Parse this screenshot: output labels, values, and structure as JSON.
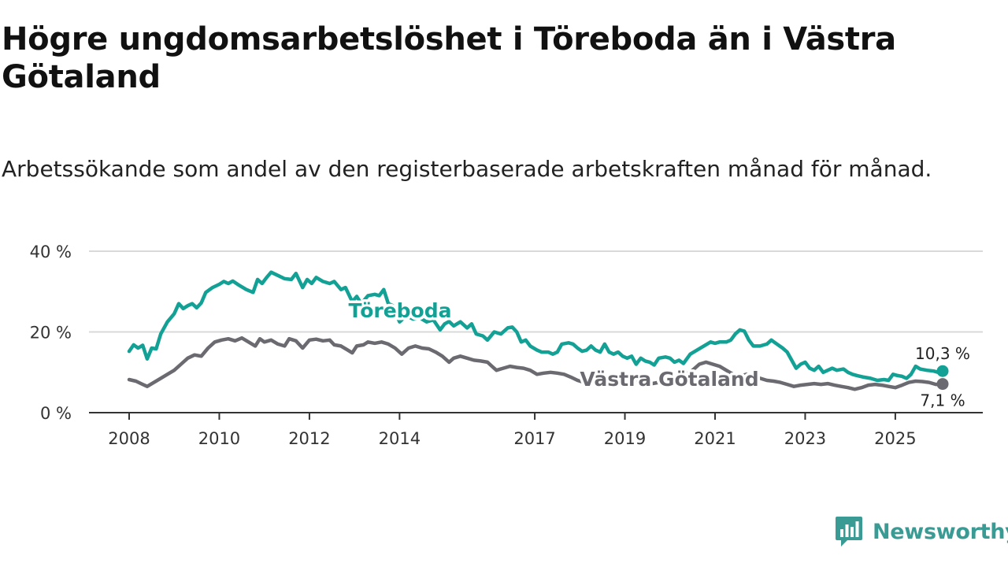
{
  "header": {
    "title": "Högre ungdomsarbetslöshet i Töreboda än i Västra Götaland",
    "subtitle": "Arbetssökande som andel av den registerbaserade arbetskraften månad för månad."
  },
  "brand": {
    "name": "Newsworthy",
    "icon": "newsworthy-logo-icon",
    "color": "#3a9b95"
  },
  "colors": {
    "toreboda": "#13a195",
    "vastra": "#6b6a70",
    "grid": "#d9d9d9",
    "axis": "#333333"
  },
  "chart_data": {
    "type": "line",
    "title": "Högre ungdomsarbetslöshet i Töreboda än i Västra Götaland",
    "subtitle": "Arbetssökande som andel av den registerbaserade arbetskraften månad för månad.",
    "xlabel": "",
    "ylabel": "",
    "ylim": [
      0,
      40
    ],
    "yticks": [
      0,
      20,
      40
    ],
    "ytick_labels": [
      "0 %",
      "20 %",
      "40 %"
    ],
    "xlim": [
      2008,
      2026.05
    ],
    "xticks": [
      2008,
      2010,
      2012,
      2014,
      2017,
      2019,
      2021,
      2023,
      2025
    ],
    "xtick_labels": [
      "2008",
      "2010",
      "2012",
      "2014",
      "2017",
      "2019",
      "2021",
      "2023",
      "2025"
    ],
    "grid": true,
    "legend": "inline labels",
    "series": [
      {
        "name": "Töreboda",
        "label": "Töreboda",
        "end_label": "10,3 %",
        "color": "#13a195",
        "points": [
          [
            2008.0,
            15.2
          ],
          [
            2008.1,
            16.8
          ],
          [
            2008.2,
            16.0
          ],
          [
            2008.3,
            16.7
          ],
          [
            2008.4,
            13.3
          ],
          [
            2008.5,
            16.0
          ],
          [
            2008.6,
            15.8
          ],
          [
            2008.7,
            19.5
          ],
          [
            2008.85,
            22.5
          ],
          [
            2009.0,
            24.5
          ],
          [
            2009.1,
            27.0
          ],
          [
            2009.2,
            25.8
          ],
          [
            2009.3,
            26.5
          ],
          [
            2009.4,
            27.0
          ],
          [
            2009.5,
            26.0
          ],
          [
            2009.6,
            27.2
          ],
          [
            2009.7,
            29.8
          ],
          [
            2009.85,
            31.0
          ],
          [
            2010.0,
            31.8
          ],
          [
            2010.1,
            32.5
          ],
          [
            2010.2,
            32.0
          ],
          [
            2010.3,
            32.6
          ],
          [
            2010.45,
            31.5
          ],
          [
            2010.6,
            30.5
          ],
          [
            2010.75,
            29.8
          ],
          [
            2010.85,
            33.0
          ],
          [
            2010.95,
            32.0
          ],
          [
            2011.05,
            33.5
          ],
          [
            2011.15,
            34.8
          ],
          [
            2011.3,
            34.0
          ],
          [
            2011.45,
            33.2
          ],
          [
            2011.6,
            33.0
          ],
          [
            2011.7,
            34.5
          ],
          [
            2011.85,
            31.0
          ],
          [
            2011.95,
            33.0
          ],
          [
            2012.05,
            32.0
          ],
          [
            2012.15,
            33.5
          ],
          [
            2012.3,
            32.5
          ],
          [
            2012.45,
            32.0
          ],
          [
            2012.55,
            32.5
          ],
          [
            2012.7,
            30.5
          ],
          [
            2012.8,
            31.0
          ],
          [
            2012.95,
            27.5
          ],
          [
            2013.05,
            28.8
          ],
          [
            2013.15,
            27.0
          ],
          [
            2013.3,
            29.0
          ],
          [
            2013.45,
            29.3
          ],
          [
            2013.55,
            29.0
          ],
          [
            2013.65,
            30.5
          ],
          [
            2013.75,
            27.0
          ],
          [
            2013.85,
            26.5
          ],
          [
            2014.0,
            22.5
          ],
          [
            2014.15,
            24.0
          ],
          [
            2014.3,
            23.2
          ],
          [
            2014.45,
            23.5
          ],
          [
            2014.6,
            22.5
          ],
          [
            2014.75,
            23.0
          ],
          [
            2014.9,
            20.5
          ],
          [
            2015.0,
            22.0
          ],
          [
            2015.1,
            22.6
          ],
          [
            2015.2,
            21.5
          ],
          [
            2015.35,
            22.5
          ],
          [
            2015.5,
            21.0
          ],
          [
            2015.6,
            22.0
          ],
          [
            2015.7,
            19.5
          ],
          [
            2015.85,
            19.0
          ],
          [
            2015.95,
            18.0
          ],
          [
            2016.1,
            20.0
          ],
          [
            2016.25,
            19.5
          ],
          [
            2016.4,
            21.0
          ],
          [
            2016.5,
            21.2
          ],
          [
            2016.6,
            20.0
          ],
          [
            2016.7,
            17.5
          ],
          [
            2016.8,
            18.0
          ],
          [
            2016.9,
            16.5
          ],
          [
            2017.05,
            15.5
          ],
          [
            2017.15,
            15.0
          ],
          [
            2017.3,
            15.0
          ],
          [
            2017.4,
            14.5
          ],
          [
            2017.5,
            15.0
          ],
          [
            2017.6,
            17.0
          ],
          [
            2017.75,
            17.3
          ],
          [
            2017.85,
            17.0
          ],
          [
            2017.95,
            16.0
          ],
          [
            2018.05,
            15.2
          ],
          [
            2018.15,
            15.5
          ],
          [
            2018.25,
            16.5
          ],
          [
            2018.35,
            15.5
          ],
          [
            2018.45,
            15.0
          ],
          [
            2018.55,
            17.0
          ],
          [
            2018.65,
            15.0
          ],
          [
            2018.75,
            14.5
          ],
          [
            2018.85,
            15.0
          ],
          [
            2018.95,
            14.0
          ],
          [
            2019.05,
            13.5
          ],
          [
            2019.15,
            14.0
          ],
          [
            2019.25,
            12.0
          ],
          [
            2019.35,
            13.5
          ],
          [
            2019.45,
            12.8
          ],
          [
            2019.55,
            12.5
          ],
          [
            2019.65,
            11.8
          ],
          [
            2019.75,
            13.5
          ],
          [
            2019.9,
            13.8
          ],
          [
            2020.0,
            13.5
          ],
          [
            2020.1,
            12.5
          ],
          [
            2020.2,
            13.0
          ],
          [
            2020.3,
            12.2
          ],
          [
            2020.45,
            14.5
          ],
          [
            2020.6,
            15.5
          ],
          [
            2020.75,
            16.5
          ],
          [
            2020.9,
            17.5
          ],
          [
            2021.0,
            17.2
          ],
          [
            2021.1,
            17.5
          ],
          [
            2021.25,
            17.5
          ],
          [
            2021.35,
            18.0
          ],
          [
            2021.45,
            19.5
          ],
          [
            2021.55,
            20.5
          ],
          [
            2021.65,
            20.2
          ],
          [
            2021.75,
            18.0
          ],
          [
            2021.85,
            16.5
          ],
          [
            2022.0,
            16.5
          ],
          [
            2022.15,
            17.0
          ],
          [
            2022.25,
            18.0
          ],
          [
            2022.35,
            17.2
          ],
          [
            2022.5,
            16.0
          ],
          [
            2022.6,
            15.0
          ],
          [
            2022.7,
            13.0
          ],
          [
            2022.8,
            11.0
          ],
          [
            2022.9,
            12.0
          ],
          [
            2023.0,
            12.5
          ],
          [
            2023.1,
            11.0
          ],
          [
            2023.2,
            10.5
          ],
          [
            2023.3,
            11.5
          ],
          [
            2023.4,
            10.0
          ],
          [
            2023.5,
            10.5
          ],
          [
            2023.6,
            11.0
          ],
          [
            2023.7,
            10.5
          ],
          [
            2023.85,
            10.8
          ],
          [
            2023.95,
            10.0
          ],
          [
            2024.05,
            9.5
          ],
          [
            2024.15,
            9.2
          ],
          [
            2024.3,
            8.8
          ],
          [
            2024.45,
            8.5
          ],
          [
            2024.6,
            8.0
          ],
          [
            2024.75,
            8.2
          ],
          [
            2024.85,
            8.0
          ],
          [
            2024.95,
            9.5
          ],
          [
            2025.05,
            9.2
          ],
          [
            2025.15,
            9.0
          ],
          [
            2025.25,
            8.5
          ],
          [
            2025.35,
            9.5
          ],
          [
            2025.45,
            11.5
          ],
          [
            2025.55,
            10.8
          ],
          [
            2025.7,
            10.5
          ],
          [
            2025.85,
            10.3
          ],
          [
            2025.95,
            10.0
          ],
          [
            2026.05,
            10.3
          ]
        ]
      },
      {
        "name": "Västra Götaland",
        "label": "Västra Götaland",
        "end_label": "7,1 %",
        "color": "#6b6a70",
        "points": [
          [
            2008.0,
            8.2
          ],
          [
            2008.15,
            7.8
          ],
          [
            2008.3,
            7.0
          ],
          [
            2008.4,
            6.5
          ],
          [
            2008.55,
            7.5
          ],
          [
            2008.7,
            8.5
          ],
          [
            2008.85,
            9.5
          ],
          [
            2009.0,
            10.5
          ],
          [
            2009.15,
            12.0
          ],
          [
            2009.3,
            13.5
          ],
          [
            2009.45,
            14.3
          ],
          [
            2009.6,
            14.0
          ],
          [
            2009.75,
            16.0
          ],
          [
            2009.9,
            17.5
          ],
          [
            2010.05,
            18.0
          ],
          [
            2010.2,
            18.3
          ],
          [
            2010.35,
            17.8
          ],
          [
            2010.5,
            18.5
          ],
          [
            2010.65,
            17.5
          ],
          [
            2010.8,
            16.5
          ],
          [
            2010.9,
            18.3
          ],
          [
            2011.0,
            17.5
          ],
          [
            2011.15,
            18.0
          ],
          [
            2011.3,
            17.0
          ],
          [
            2011.45,
            16.5
          ],
          [
            2011.55,
            18.3
          ],
          [
            2011.7,
            17.8
          ],
          [
            2011.85,
            16.0
          ],
          [
            2012.0,
            18.0
          ],
          [
            2012.15,
            18.2
          ],
          [
            2012.3,
            17.8
          ],
          [
            2012.45,
            18.0
          ],
          [
            2012.55,
            16.8
          ],
          [
            2012.7,
            16.5
          ],
          [
            2012.85,
            15.5
          ],
          [
            2012.95,
            14.8
          ],
          [
            2013.05,
            16.5
          ],
          [
            2013.2,
            16.8
          ],
          [
            2013.3,
            17.5
          ],
          [
            2013.45,
            17.2
          ],
          [
            2013.6,
            17.5
          ],
          [
            2013.75,
            17.0
          ],
          [
            2013.9,
            16.0
          ],
          [
            2014.05,
            14.5
          ],
          [
            2014.2,
            16.0
          ],
          [
            2014.35,
            16.5
          ],
          [
            2014.5,
            16.0
          ],
          [
            2014.65,
            15.8
          ],
          [
            2014.8,
            15.0
          ],
          [
            2014.95,
            14.0
          ],
          [
            2015.1,
            12.5
          ],
          [
            2015.2,
            13.5
          ],
          [
            2015.35,
            14.0
          ],
          [
            2015.5,
            13.5
          ],
          [
            2015.65,
            13.0
          ],
          [
            2015.8,
            12.8
          ],
          [
            2015.95,
            12.5
          ],
          [
            2016.05,
            11.5
          ],
          [
            2016.15,
            10.5
          ],
          [
            2016.3,
            11.0
          ],
          [
            2016.45,
            11.5
          ],
          [
            2016.6,
            11.2
          ],
          [
            2016.75,
            11.0
          ],
          [
            2016.9,
            10.5
          ],
          [
            2017.05,
            9.5
          ],
          [
            2017.2,
            9.8
          ],
          [
            2017.35,
            10.0
          ],
          [
            2017.5,
            9.8
          ],
          [
            2017.65,
            9.5
          ],
          [
            2017.8,
            8.8
          ],
          [
            2017.95,
            8.0
          ],
          [
            2018.1,
            7.5
          ],
          [
            2018.25,
            8.0
          ],
          [
            2018.4,
            8.5
          ],
          [
            2018.55,
            8.2
          ],
          [
            2018.7,
            7.8
          ],
          [
            2018.85,
            8.0
          ],
          [
            2019.0,
            7.5
          ],
          [
            2019.15,
            7.8
          ],
          [
            2019.3,
            7.5
          ],
          [
            2019.45,
            7.8
          ],
          [
            2019.6,
            7.2
          ],
          [
            2019.75,
            7.5
          ],
          [
            2019.9,
            8.0
          ],
          [
            2020.05,
            8.5
          ],
          [
            2020.2,
            9.0
          ],
          [
            2020.35,
            9.5
          ],
          [
            2020.5,
            10.5
          ],
          [
            2020.65,
            12.0
          ],
          [
            2020.8,
            12.5
          ],
          [
            2020.95,
            12.0
          ],
          [
            2021.1,
            11.5
          ],
          [
            2021.25,
            10.5
          ],
          [
            2021.4,
            9.5
          ],
          [
            2021.55,
            9.0
          ],
          [
            2021.7,
            9.5
          ],
          [
            2021.85,
            9.2
          ],
          [
            2022.0,
            8.5
          ],
          [
            2022.15,
            8.0
          ],
          [
            2022.3,
            7.8
          ],
          [
            2022.45,
            7.5
          ],
          [
            2022.6,
            7.0
          ],
          [
            2022.75,
            6.5
          ],
          [
            2022.9,
            6.8
          ],
          [
            2023.05,
            7.0
          ],
          [
            2023.2,
            7.2
          ],
          [
            2023.35,
            7.0
          ],
          [
            2023.5,
            7.2
          ],
          [
            2023.65,
            6.8
          ],
          [
            2023.8,
            6.5
          ],
          [
            2023.95,
            6.2
          ],
          [
            2024.1,
            5.8
          ],
          [
            2024.25,
            6.2
          ],
          [
            2024.4,
            6.8
          ],
          [
            2024.55,
            7.0
          ],
          [
            2024.7,
            6.8
          ],
          [
            2024.85,
            6.5
          ],
          [
            2025.0,
            6.2
          ],
          [
            2025.15,
            6.8
          ],
          [
            2025.3,
            7.5
          ],
          [
            2025.45,
            7.8
          ],
          [
            2025.6,
            7.7
          ],
          [
            2025.75,
            7.5
          ],
          [
            2025.9,
            7.0
          ],
          [
            2026.05,
            7.1
          ]
        ]
      }
    ]
  }
}
